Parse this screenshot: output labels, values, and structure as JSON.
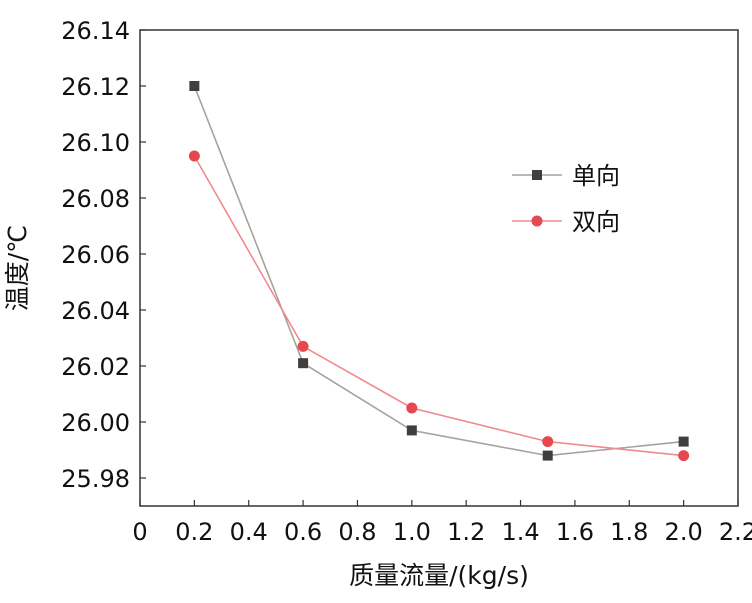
{
  "chart_data": {
    "type": "line",
    "title": "",
    "xlabel": "质量流量/(kg/s)",
    "ylabel": "温度/℃",
    "xlim": [
      0,
      2.2
    ],
    "ylim": [
      25.97,
      26.14
    ],
    "xticks": [
      0,
      0.2,
      0.4,
      0.6,
      0.8,
      1.0,
      1.2,
      1.4,
      1.6,
      1.8,
      2.0,
      2.2
    ],
    "xtick_labels": [
      "0",
      "0.2",
      "0.4",
      "0.6",
      "0.8",
      "1.0",
      "1.2",
      "1.4",
      "1.6",
      "1.8",
      "2.0",
      "2.2"
    ],
    "yticks": [
      25.98,
      26.0,
      26.02,
      26.04,
      26.06,
      26.08,
      26.1,
      26.12,
      26.14
    ],
    "ytick_labels": [
      "25.98",
      "26.00",
      "26.02",
      "26.04",
      "26.06",
      "26.08",
      "26.10",
      "26.12",
      "26.14"
    ],
    "grid": false,
    "legend_position": "right",
    "series": [
      {
        "name": "单向",
        "marker": "square",
        "line_color": "#a8a29c",
        "marker_color": "#3f3f3f",
        "x": [
          0.2,
          0.6,
          1.0,
          1.5,
          2.0
        ],
        "y": [
          26.12,
          26.021,
          25.997,
          25.988,
          25.993
        ]
      },
      {
        "name": "双向",
        "marker": "circle",
        "line_color": "#ef8a8e",
        "marker_color": "#e5494f",
        "x": [
          0.2,
          0.6,
          1.0,
          1.5,
          2.0
        ],
        "y": [
          26.095,
          26.027,
          26.005,
          25.993,
          25.988
        ]
      }
    ]
  }
}
